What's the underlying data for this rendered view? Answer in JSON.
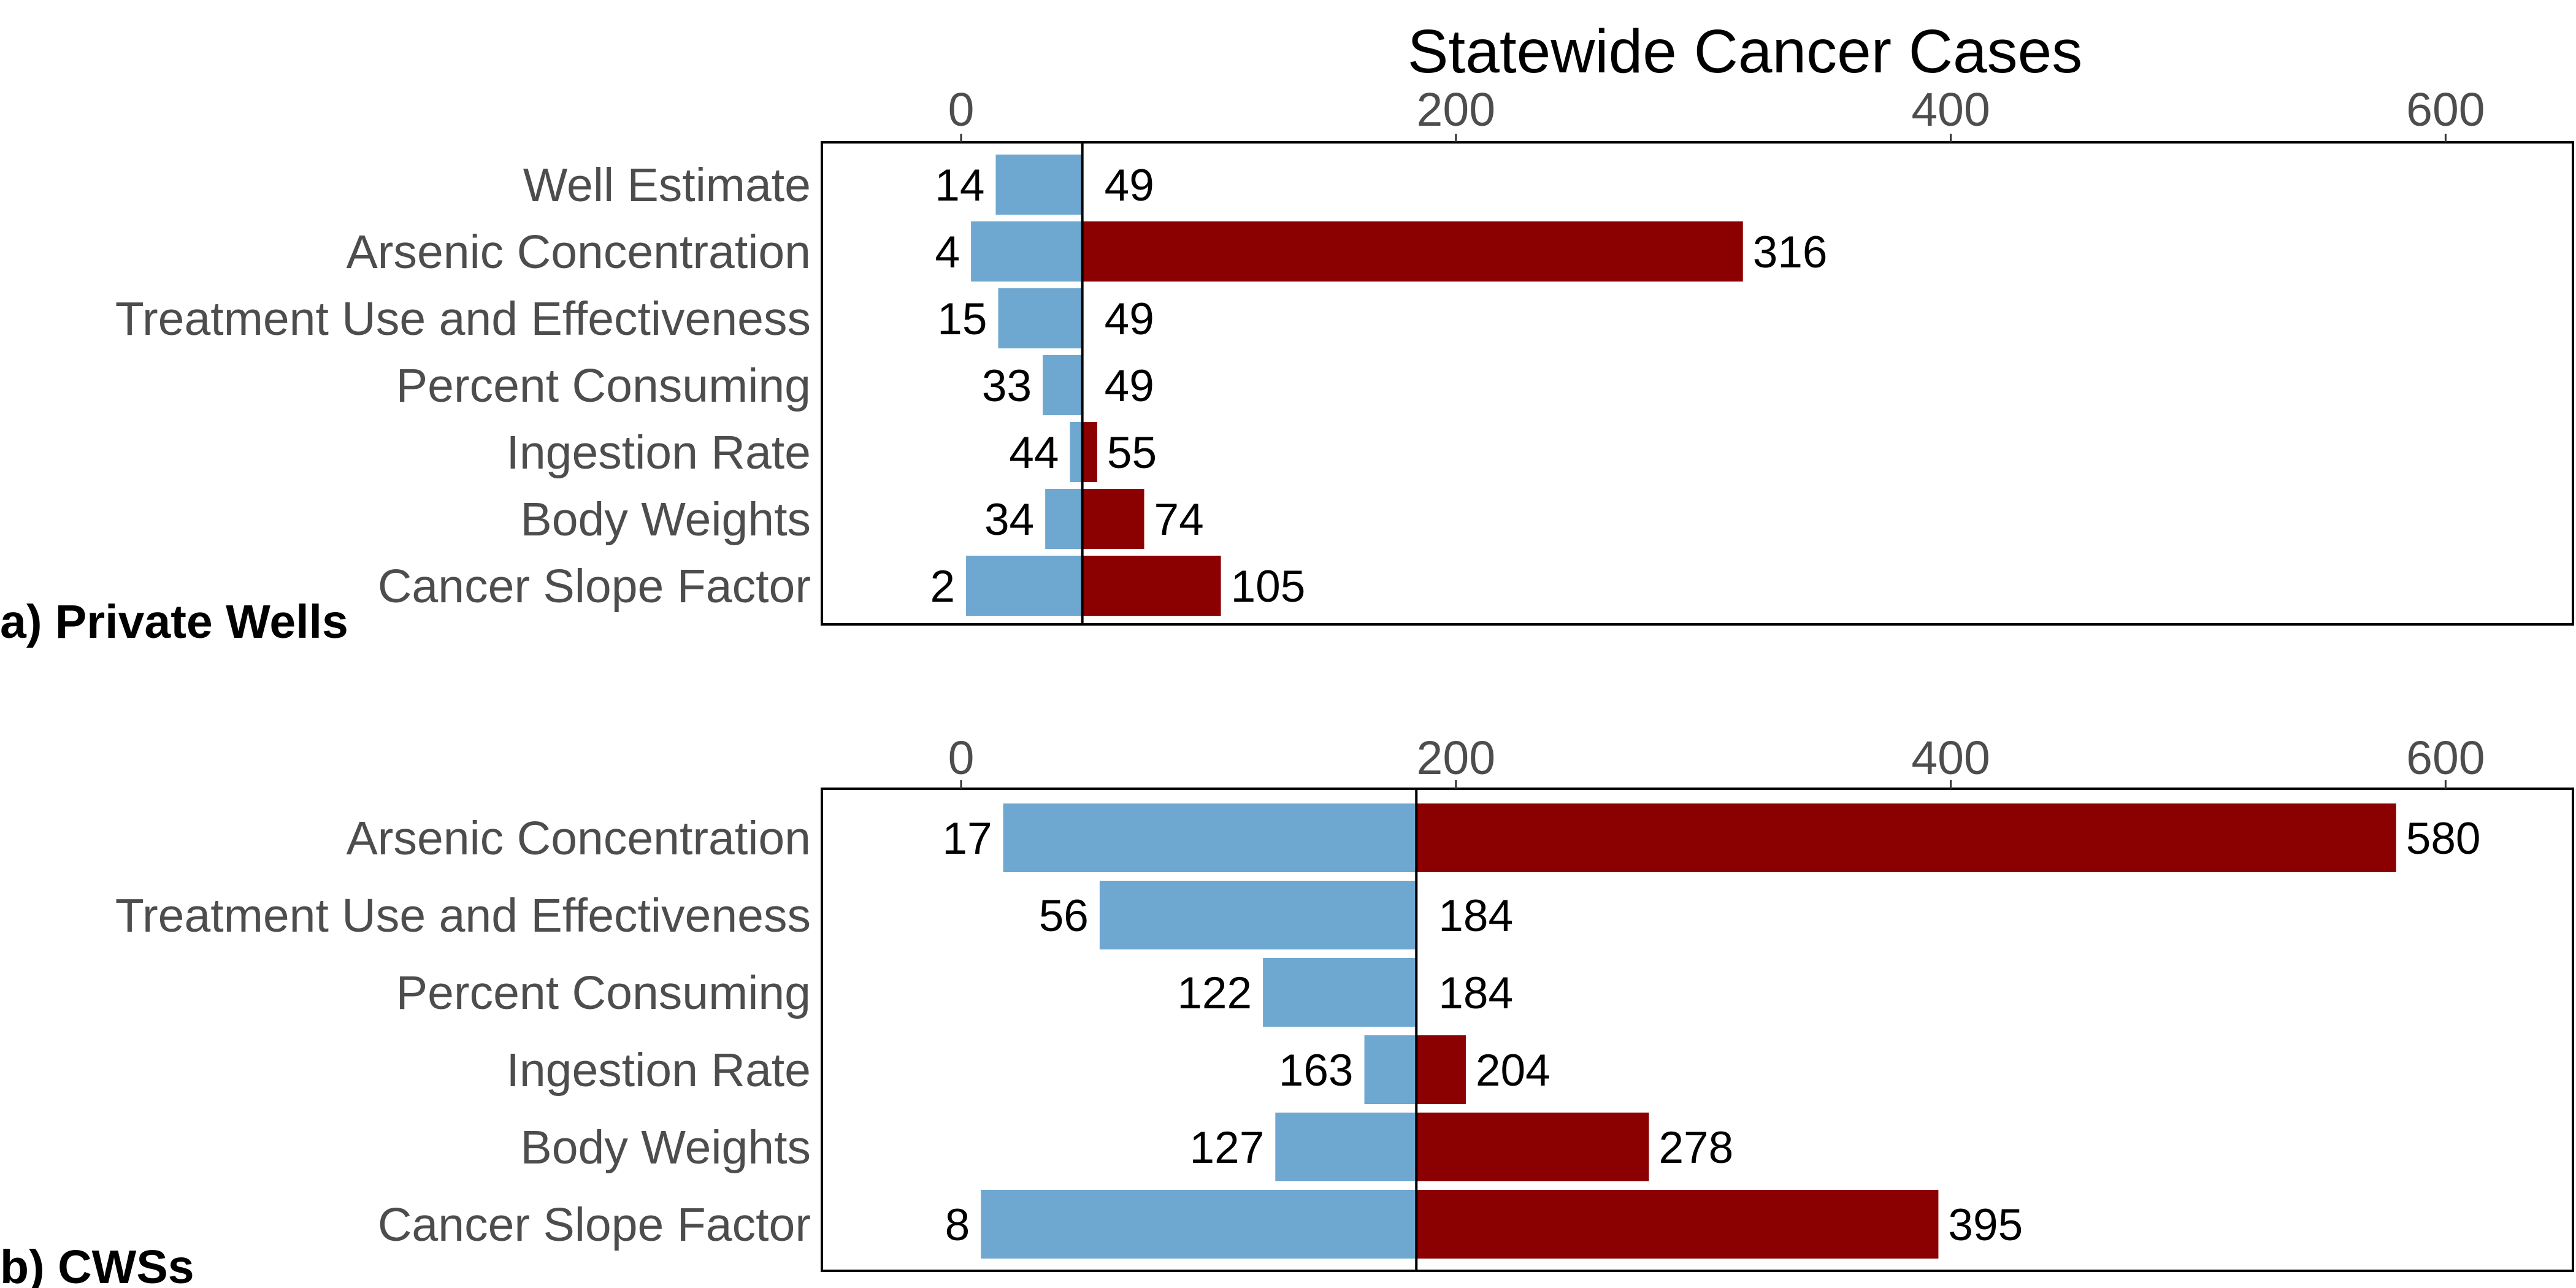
{
  "colors": {
    "low": "#6ea7cf",
    "high": "#8b0000",
    "frame": "#000000"
  },
  "chart_data": {
    "type": "bar",
    "orientation": "horizontal",
    "style": "tornado",
    "xlabel": "Statewide Cancer Cases",
    "xlim": [
      -57,
      650
    ],
    "xticks": [
      0,
      200,
      400,
      600
    ],
    "grid": false,
    "legend": "none",
    "panels": [
      {
        "label": "a) Private Wells",
        "baseline": 49,
        "categories": [
          "Well Estimate",
          "Arsenic Concentration",
          "Treatment Use and Effectiveness",
          "Percent Consuming",
          "Ingestion Rate",
          "Body Weights",
          "Cancer Slope Factor"
        ],
        "low": [
          14,
          4,
          15,
          33,
          44,
          34,
          2
        ],
        "high": [
          49,
          316,
          49,
          49,
          55,
          74,
          105
        ]
      },
      {
        "label": "b) CWSs",
        "baseline": 184,
        "categories": [
          "Arsenic Concentration",
          "Treatment Use and Effectiveness",
          "Percent Consuming",
          "Ingestion Rate",
          "Body Weights",
          "Cancer Slope Factor"
        ],
        "low": [
          17,
          56,
          122,
          163,
          127,
          8
        ],
        "high": [
          580,
          184,
          184,
          204,
          278,
          395
        ]
      }
    ]
  }
}
